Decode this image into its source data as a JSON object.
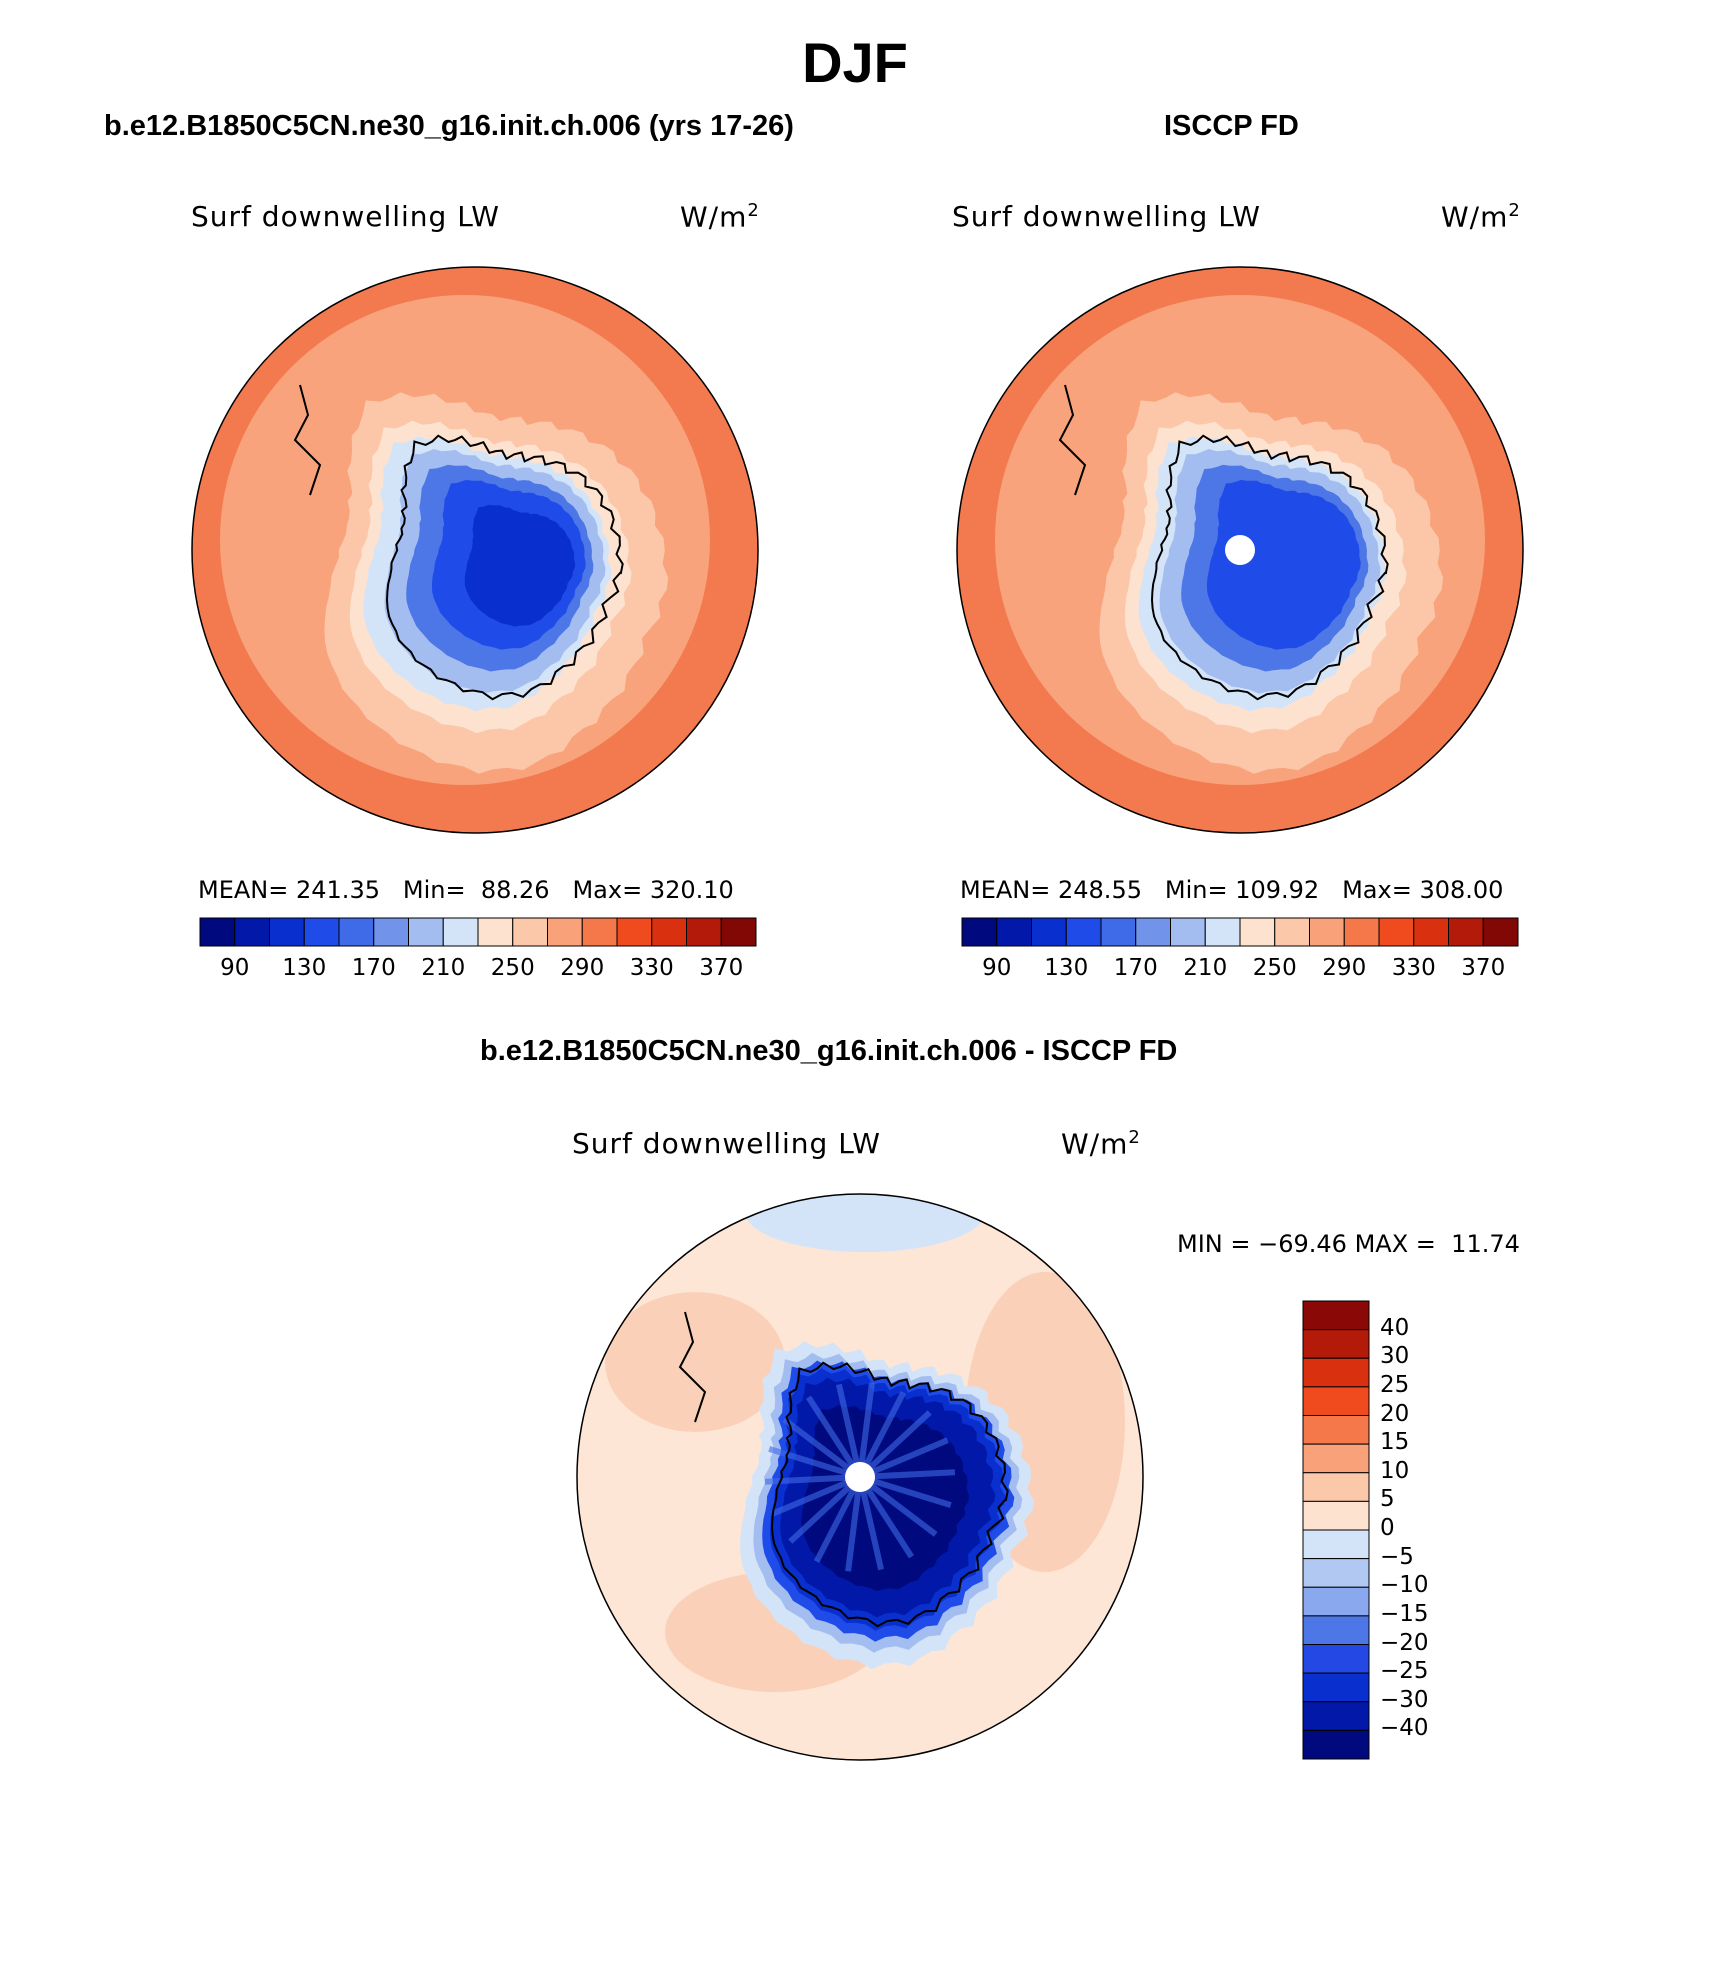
{
  "figure": {
    "title": "DJF"
  },
  "panels": [
    {
      "id": "model",
      "title": "b.e12.B1850C5CN.ne30_g16.init.ch.006 (yrs 17-26)",
      "left_label": "Surf downwelling LW",
      "units_label": "W/m",
      "units_exp": "2",
      "stats": {
        "mean": "241.35",
        "min": "88.26",
        "max": "320.10"
      }
    },
    {
      "id": "obs",
      "title": "ISCCP FD",
      "left_label": "Surf downwelling LW",
      "units_label": "W/m",
      "units_exp": "2",
      "stats": {
        "mean": "248.55",
        "min": "109.92",
        "max": "308.00"
      }
    },
    {
      "id": "diff",
      "title": "b.e12.B1850C5CN.ne30_g16.init.ch.006 - ISCCP FD",
      "left_label": "Surf downwelling LW",
      "units_label": "W/m",
      "units_exp": "2",
      "stats": {
        "min": "−69.46",
        "max": "11.74"
      }
    }
  ],
  "stat_labels": {
    "mean": "MEAN=",
    "min": "Min=",
    "max": "Max=",
    "diff_min": "MIN =",
    "diff_max": "MAX ="
  },
  "abs_colorbar": {
    "colors": [
      "#00097e",
      "#0118a8",
      "#0a2fcf",
      "#1f4be9",
      "#3f6ae8",
      "#7194ea",
      "#a4bdf0",
      "#d4e4f8",
      "#fde2d0",
      "#fcc8aa",
      "#f9a27a",
      "#f5784b",
      "#f04a1f",
      "#d9300f",
      "#b31a0a",
      "#820806"
    ],
    "tick_labels": [
      "90",
      "130",
      "170",
      "210",
      "250",
      "290",
      "330",
      "370"
    ]
  },
  "diff_colorbar": {
    "colors_top_to_bottom": [
      "#8a0805",
      "#b31a0a",
      "#d9300f",
      "#f04a1f",
      "#f5784b",
      "#f9a27a",
      "#fcc8aa",
      "#fde2d0",
      "#d4e4f8",
      "#b0c8f2",
      "#8aa8ee",
      "#4d76e6",
      "#2448e4",
      "#0a2fcf",
      "#0118a8",
      "#00097e"
    ],
    "tick_labels": [
      "40",
      "30",
      "25",
      "20",
      "15",
      "10",
      "5",
      "0",
      "−5",
      "−10",
      "−15",
      "−20",
      "−25",
      "−30",
      "−40"
    ]
  },
  "map_colors": {
    "ocean_outer": "#f27a4e",
    "ocean_mid": "#f8a37c",
    "ocean_inner": "#fcc7a8",
    "ocean_ice": "#fde2d0",
    "coast_pale": "#d4e4f8",
    "ice_light": "#a4bdf0",
    "ice_mid": "#4d76e6",
    "ice_deep": "#1f4be9",
    "ice_core": "#0a2fcf",
    "ice_darkest": "#00097e",
    "diff_bg": "#fde6d6",
    "diff_warm": "#fbd0b8",
    "diff_cool": "#d4e4f8",
    "coastline": "#000000"
  }
}
